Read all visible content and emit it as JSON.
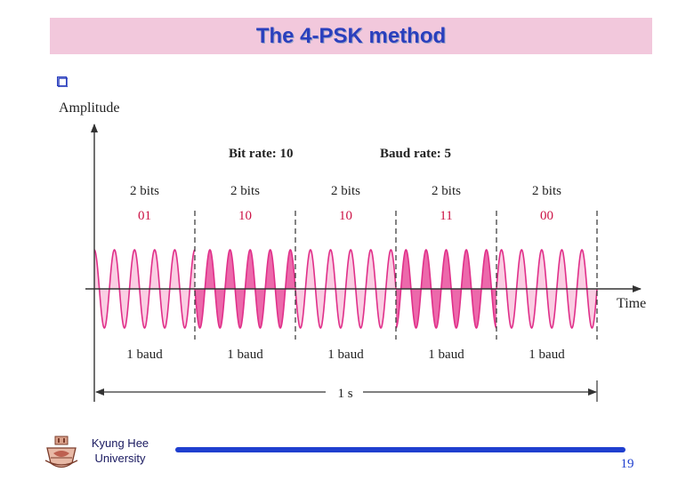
{
  "slide": {
    "title": "The 4-PSK method",
    "university_line1": "Kyung Hee",
    "university_line2": "University",
    "page_number": "19",
    "colors": {
      "title_bg": "#f2c8dc",
      "title_text": "#2a3fbd",
      "wave": "#e0308a",
      "wave_fill_light": "#f9c9e0",
      "wave_fill_dark": "#e94f9c",
      "accent_red": "#cc1144",
      "footer_bar": "#1f3fcf"
    }
  },
  "diagram": {
    "y_axis_label": "Amplitude",
    "x_axis_label": "Time",
    "bit_rate_label": "Bit rate: 10",
    "baud_rate_label": "Baud rate: 5",
    "duration_label": "1 s",
    "cycles_per_baud": 5,
    "segments": [
      {
        "bits_label": "2 bits",
        "code": "01",
        "baud_label": "1 baud",
        "phase_deg": 90
      },
      {
        "bits_label": "2 bits",
        "code": "10",
        "baud_label": "1 baud",
        "phase_deg": 180
      },
      {
        "bits_label": "2 bits",
        "code": "10",
        "baud_label": "1 baud",
        "phase_deg": 180
      },
      {
        "bits_label": "2 bits",
        "code": "11",
        "baud_label": "1 baud",
        "phase_deg": 270
      },
      {
        "bits_label": "2 bits",
        "code": "00",
        "baud_label": "1 baud",
        "phase_deg": 0
      }
    ]
  }
}
